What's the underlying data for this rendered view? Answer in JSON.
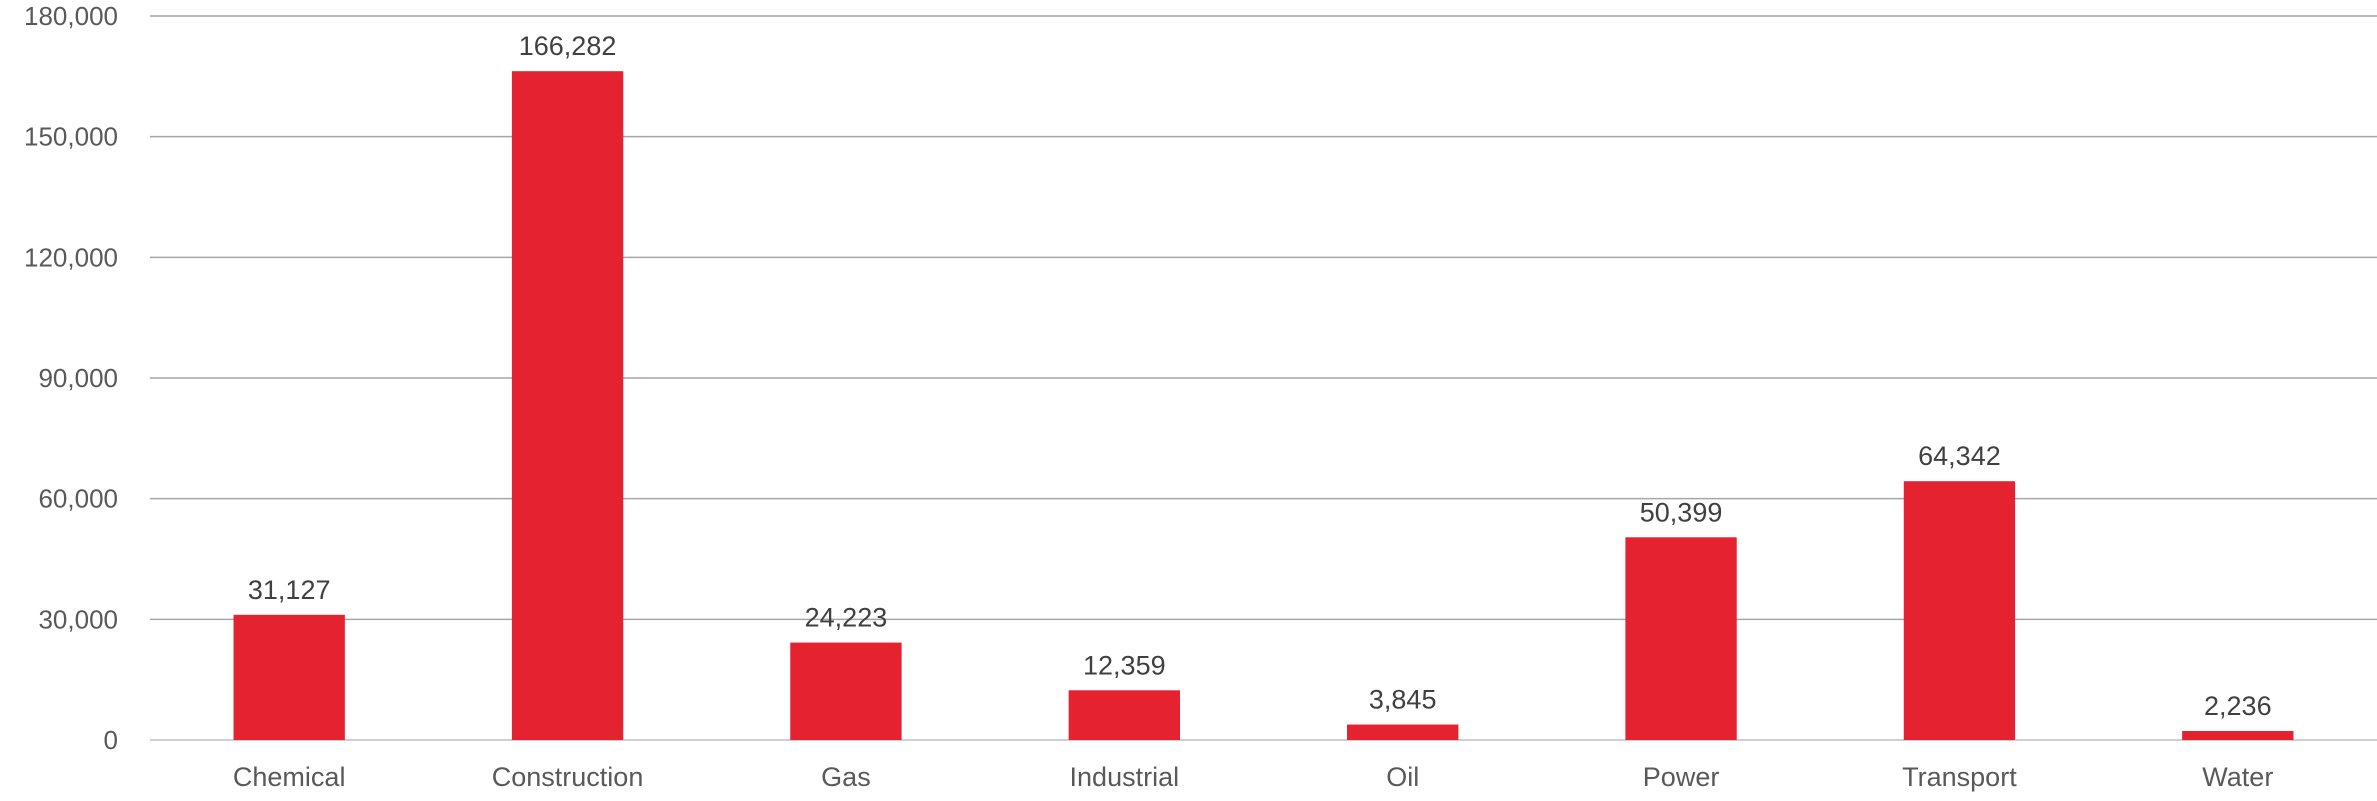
{
  "chart_data": {
    "type": "bar",
    "categories": [
      "Chemical",
      "Construction",
      "Gas",
      "Industrial",
      "Oil",
      "Power",
      "Transport",
      "Water"
    ],
    "values": [
      31127,
      166282,
      24223,
      12359,
      3845,
      50399,
      64342,
      2236
    ],
    "value_labels": [
      "31,127",
      "166,282",
      "24,223",
      "12,359",
      "3,845",
      "50,399",
      "64,342",
      "2,236"
    ],
    "yticks": [
      0,
      30000,
      60000,
      90000,
      120000,
      150000,
      180000
    ],
    "ytick_labels": [
      "0",
      "30,000",
      "60,000",
      "90,000",
      "120,000",
      "150,000",
      "180,000"
    ],
    "ylim": [
      0,
      180000
    ],
    "grid": true,
    "legend": "none",
    "title": "",
    "xlabel": "",
    "ylabel": "",
    "bar_color": "#e52330"
  }
}
